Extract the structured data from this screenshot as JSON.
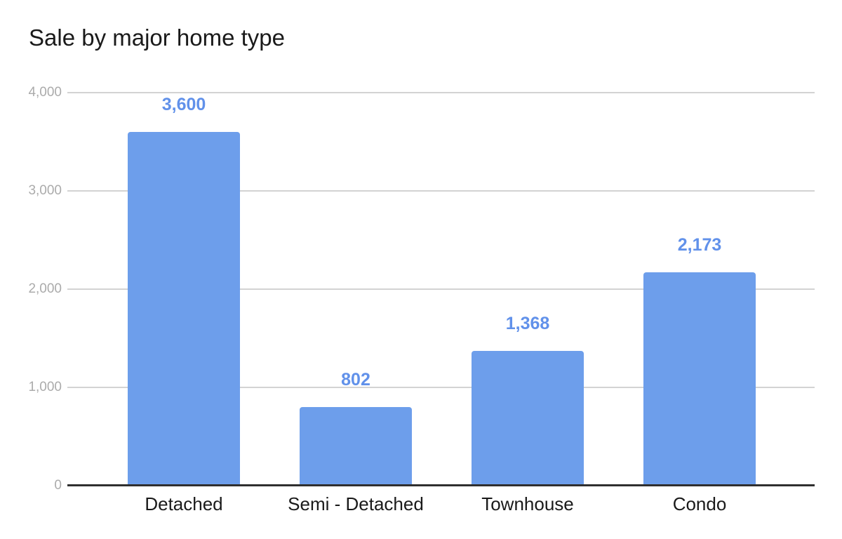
{
  "chart_data": {
    "type": "bar",
    "title": "Sale by major home type",
    "categories": [
      "Detached",
      "Semi - Detached",
      "Townhouse",
      "Condo"
    ],
    "values": [
      3600,
      802,
      1368,
      2173
    ],
    "value_labels": [
      "3,600",
      "802",
      "1,368",
      "2,173"
    ],
    "yticks": [
      {
        "label": "0",
        "value": 0
      },
      {
        "label": "1,000",
        "value": 1000
      },
      {
        "label": "2,000",
        "value": 2000
      },
      {
        "label": "3,000",
        "value": 3000
      },
      {
        "label": "4,000",
        "value": 4000
      }
    ],
    "ylim": [
      0,
      4000
    ],
    "xlabel": "",
    "ylabel": "",
    "grid": true,
    "legend": "none",
    "colors": {
      "bar": "#6d9eeb",
      "value_label": "#6191ea",
      "title": "#1a1a1a",
      "category_label": "#1a1a1a",
      "tick_label": "#ababab",
      "gridline": "#d3d3d3",
      "axis_line": "#2f2f2f",
      "background": "#ffffff"
    }
  }
}
